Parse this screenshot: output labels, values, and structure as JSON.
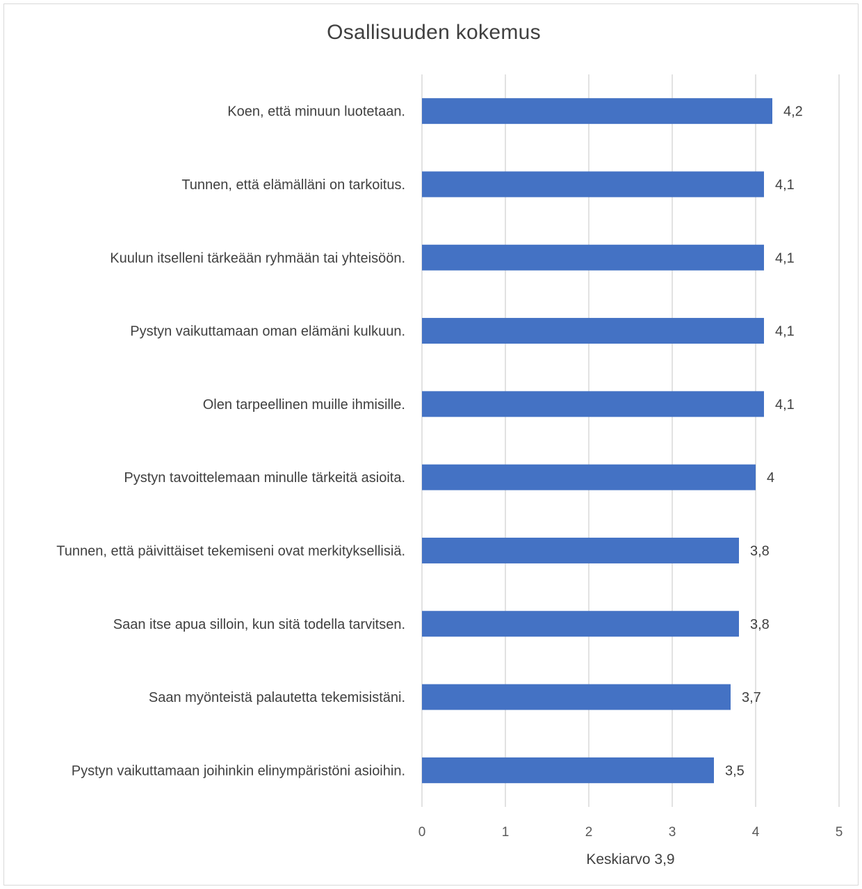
{
  "chart_data": {
    "type": "bar",
    "orientation": "horizontal",
    "title": "Osallisuuden kokemus",
    "xlabel": "Keskiarvo 3,9",
    "ylabel": "",
    "xlim": [
      0,
      5
    ],
    "xticks": [
      "0",
      "1",
      "2",
      "3",
      "4",
      "5"
    ],
    "grid": true,
    "legend": "none",
    "bar_color": "#4472c4",
    "categories": [
      "Koen, että minuun luotetaan.",
      "Tunnen, että elämälläni on tarkoitus.",
      "Kuulun itselleni tärkeään ryhmään tai yhteisöön.",
      "Pystyn vaikuttamaan oman elämäni kulkuun.",
      "Olen tarpeellinen muille ihmisille.",
      "Pystyn tavoittelemaan minulle tärkeitä asioita.",
      "Tunnen, että päivittäiset tekemiseni ovat merkityksellisiä.",
      "Saan itse apua silloin, kun sitä todella tarvitsen.",
      "Saan myönteistä palautetta tekemisistäni.",
      "Pystyn vaikuttamaan joihinkin elinympäristöni asioihin."
    ],
    "values": [
      4.2,
      4.1,
      4.1,
      4.1,
      4.1,
      4.0,
      3.8,
      3.8,
      3.7,
      3.5
    ],
    "value_labels": [
      "4,2",
      "4,1",
      "4,1",
      "4,1",
      "4,1",
      "4",
      "3,8",
      "3,8",
      "3,7",
      "3,5"
    ]
  }
}
